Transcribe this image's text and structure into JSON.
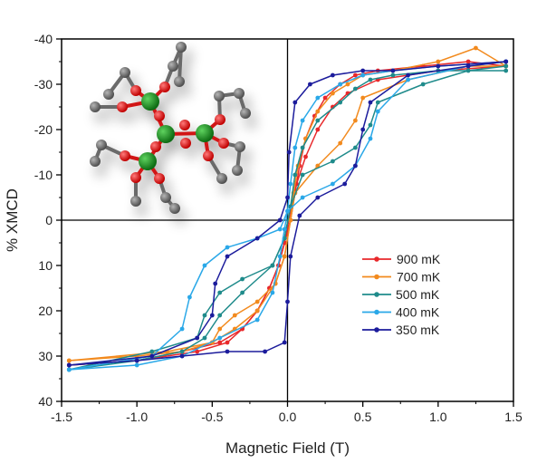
{
  "chart_data": {
    "type": "line",
    "title": "",
    "xlabel": "Magnetic Field (T)",
    "ylabel": "% XMCD",
    "xlim": [
      -1.5,
      1.5
    ],
    "ylim": [
      -40,
      40
    ],
    "y_axis_inverted": true,
    "x_ticks": [
      -1.5,
      -1.0,
      -0.5,
      0.0,
      0.5,
      1.0,
      1.5
    ],
    "x_tick_labels": [
      "-1.5",
      "-1.0",
      "-0.5",
      "0.0",
      "0.5",
      "1.0",
      "1.5"
    ],
    "y_ticks": [
      -40,
      -30,
      -20,
      -10,
      0,
      10,
      20,
      30,
      40
    ],
    "y_tick_labels": [
      "-40",
      "-30",
      "-20",
      "-10",
      "0",
      "10",
      "20",
      "30",
      "40"
    ],
    "grid": false,
    "zero_lines": true,
    "legend_position": "center-right",
    "inset": "molecular structure rendering (green metal centres, red oxygen, grey carbon)",
    "series": [
      {
        "name": "900 mK",
        "color": "#e8282b",
        "down": [
          [
            1.45,
            -34
          ],
          [
            1.2,
            -35
          ],
          [
            0.9,
            -34
          ],
          [
            0.6,
            -33
          ],
          [
            0.45,
            -32
          ],
          [
            0.35,
            -30
          ],
          [
            0.25,
            -27
          ],
          [
            0.18,
            -23
          ],
          [
            0.12,
            -18
          ],
          [
            0.08,
            -12
          ],
          [
            0.05,
            -6
          ],
          [
            0.02,
            0
          ],
          [
            -0.02,
            5
          ],
          [
            -0.06,
            10
          ],
          [
            -0.12,
            15
          ],
          [
            -0.2,
            20
          ],
          [
            -0.3,
            24
          ],
          [
            -0.45,
            27
          ],
          [
            -0.7,
            29
          ],
          [
            -1.0,
            31
          ],
          [
            -1.45,
            32
          ]
        ],
        "up": [
          [
            -1.45,
            32
          ],
          [
            -1.0,
            31
          ],
          [
            -0.6,
            29
          ],
          [
            -0.4,
            27
          ],
          [
            -0.3,
            24
          ],
          [
            -0.2,
            20
          ],
          [
            -0.12,
            15
          ],
          [
            -0.06,
            10
          ],
          [
            -0.02,
            5
          ],
          [
            0.02,
            -2
          ],
          [
            0.06,
            -8
          ],
          [
            0.12,
            -14
          ],
          [
            0.2,
            -20
          ],
          [
            0.3,
            -25
          ],
          [
            0.4,
            -28
          ],
          [
            0.6,
            -31
          ],
          [
            1.0,
            -33
          ],
          [
            1.45,
            -34
          ]
        ]
      },
      {
        "name": "700 mK",
        "color": "#f28a1e",
        "down": [
          [
            1.45,
            -34
          ],
          [
            1.25,
            -38
          ],
          [
            1.0,
            -35
          ],
          [
            0.7,
            -33
          ],
          [
            0.5,
            -32
          ],
          [
            0.4,
            -30
          ],
          [
            0.3,
            -28
          ],
          [
            0.2,
            -24
          ],
          [
            0.12,
            -18
          ],
          [
            0.07,
            -12
          ],
          [
            0.04,
            -6
          ],
          [
            0.02,
            0
          ],
          [
            -0.02,
            8
          ],
          [
            -0.08,
            14
          ],
          [
            -0.2,
            18
          ],
          [
            -0.35,
            21
          ],
          [
            -0.45,
            24
          ],
          [
            -0.5,
            27
          ],
          [
            -0.8,
            29
          ],
          [
            -1.45,
            31
          ]
        ],
        "up": [
          [
            -1.45,
            31
          ],
          [
            -1.0,
            30
          ],
          [
            -0.7,
            29
          ],
          [
            -0.5,
            27
          ],
          [
            -0.35,
            24
          ],
          [
            -0.2,
            20
          ],
          [
            -0.08,
            14
          ],
          [
            -0.02,
            8
          ],
          [
            0.02,
            0
          ],
          [
            0.05,
            -6
          ],
          [
            0.2,
            -12
          ],
          [
            0.35,
            -17
          ],
          [
            0.45,
            -22
          ],
          [
            0.5,
            -27
          ],
          [
            0.8,
            -31
          ],
          [
            1.2,
            -34
          ],
          [
            1.45,
            -34
          ]
        ]
      },
      {
        "name": "500 mK",
        "color": "#1f8b8b",
        "down": [
          [
            1.45,
            -33
          ],
          [
            1.0,
            -33
          ],
          [
            0.7,
            -32
          ],
          [
            0.55,
            -31
          ],
          [
            0.45,
            -29
          ],
          [
            0.35,
            -26
          ],
          [
            0.2,
            -22
          ],
          [
            0.1,
            -16
          ],
          [
            0.05,
            -10
          ],
          [
            0.02,
            -3
          ],
          [
            -0.02,
            4
          ],
          [
            -0.1,
            10
          ],
          [
            -0.3,
            13
          ],
          [
            -0.45,
            16
          ],
          [
            -0.55,
            21
          ],
          [
            -0.6,
            26
          ],
          [
            -0.9,
            29
          ],
          [
            -1.45,
            33
          ]
        ],
        "up": [
          [
            -1.45,
            33
          ],
          [
            -1.0,
            31
          ],
          [
            -0.7,
            29
          ],
          [
            -0.55,
            26
          ],
          [
            -0.45,
            21
          ],
          [
            -0.3,
            16
          ],
          [
            -0.1,
            10
          ],
          [
            -0.02,
            4
          ],
          [
            0.02,
            -3
          ],
          [
            0.1,
            -10
          ],
          [
            0.3,
            -13
          ],
          [
            0.45,
            -16
          ],
          [
            0.55,
            -21
          ],
          [
            0.6,
            -26
          ],
          [
            0.9,
            -30
          ],
          [
            1.2,
            -33
          ],
          [
            1.45,
            -34
          ]
        ]
      },
      {
        "name": "400 mK",
        "color": "#2aa8e8",
        "down": [
          [
            1.45,
            -35
          ],
          [
            1.0,
            -34
          ],
          [
            0.7,
            -33
          ],
          [
            0.5,
            -32
          ],
          [
            0.35,
            -30
          ],
          [
            0.2,
            -27
          ],
          [
            0.1,
            -22
          ],
          [
            0.05,
            -16
          ],
          [
            0.02,
            -8
          ],
          [
            0.0,
            -2
          ],
          [
            -0.05,
            2
          ],
          [
            -0.2,
            4
          ],
          [
            -0.4,
            6
          ],
          [
            -0.55,
            10
          ],
          [
            -0.65,
            17
          ],
          [
            -0.7,
            24
          ],
          [
            -0.9,
            30
          ],
          [
            -1.45,
            33
          ]
        ],
        "up": [
          [
            -1.45,
            33
          ],
          [
            -1.0,
            32
          ],
          [
            -0.7,
            30
          ],
          [
            -0.45,
            26
          ],
          [
            -0.2,
            22
          ],
          [
            -0.1,
            16
          ],
          [
            -0.05,
            8
          ],
          [
            -0.02,
            2
          ],
          [
            0.0,
            -2
          ],
          [
            0.1,
            -5
          ],
          [
            0.3,
            -8
          ],
          [
            0.45,
            -12
          ],
          [
            0.55,
            -18
          ],
          [
            0.6,
            -24
          ],
          [
            0.8,
            -31
          ],
          [
            1.2,
            -34
          ],
          [
            1.45,
            -35
          ]
        ]
      },
      {
        "name": "350 mK",
        "color": "#1c1c9c",
        "down": [
          [
            1.45,
            -35
          ],
          [
            1.0,
            -34
          ],
          [
            0.7,
            -33
          ],
          [
            0.5,
            -33
          ],
          [
            0.3,
            -32
          ],
          [
            0.15,
            -30
          ],
          [
            0.05,
            -26
          ],
          [
            0.01,
            -15
          ],
          [
            0.0,
            -5
          ],
          [
            -0.05,
            0
          ],
          [
            -0.2,
            4
          ],
          [
            -0.4,
            8
          ],
          [
            -0.48,
            14
          ],
          [
            -0.5,
            21
          ],
          [
            -0.6,
            26
          ],
          [
            -0.9,
            30
          ],
          [
            -1.45,
            32
          ]
        ],
        "up": [
          [
            -1.45,
            32
          ],
          [
            -1.0,
            31
          ],
          [
            -0.7,
            30
          ],
          [
            -0.4,
            29
          ],
          [
            -0.15,
            29
          ],
          [
            -0.02,
            27
          ],
          [
            0.0,
            18
          ],
          [
            0.02,
            8
          ],
          [
            0.08,
            -1
          ],
          [
            0.2,
            -5
          ],
          [
            0.38,
            -8
          ],
          [
            0.45,
            -12
          ],
          [
            0.5,
            -20
          ],
          [
            0.55,
            -26
          ],
          [
            0.8,
            -32
          ],
          [
            1.2,
            -34
          ],
          [
            1.45,
            -35
          ]
        ]
      }
    ]
  }
}
